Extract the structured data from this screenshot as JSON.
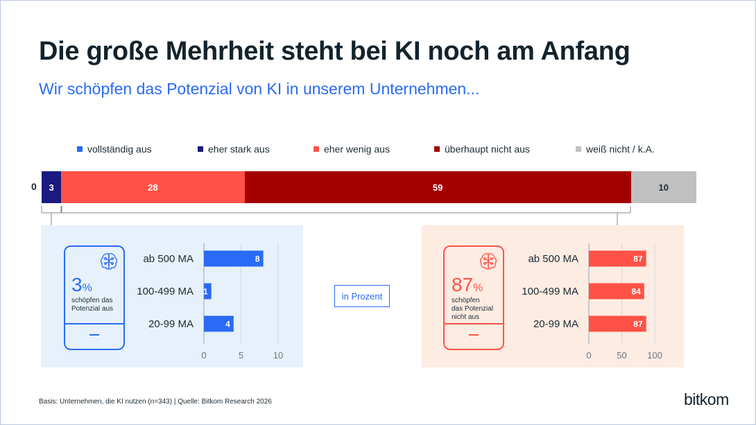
{
  "title": "Die große Mehrheit steht bei KI noch am Anfang",
  "subtitle": "Wir schöpfen das Potenzial von KI in unserem Unternehmen...",
  "colors": {
    "vollstaendig": "#2a6bf5",
    "eher_stark": "#1a1a80",
    "eher_wenig": "#ff5147",
    "ueberhaupt_nicht": "#a30000",
    "weiss_nicht": "#c0c0c0",
    "left_panel_bg": "#e6f1fb",
    "right_panel_bg": "#fdece2",
    "accent_blue": "#2a6bf5",
    "accent_red": "#ff5147"
  },
  "left_callout": {
    "value": "3",
    "unit": "%",
    "caption_line1": "schöpfen das",
    "caption_line2": "Potenzial aus",
    "icon": "brain-icon"
  },
  "right_callout": {
    "value": "87",
    "unit": "%",
    "caption_line1": "schöpfen",
    "caption_line2": "das Potenzial",
    "caption_line3": "nicht aus",
    "icon": "brain-icon"
  },
  "in_prozent_label": "in Prozent",
  "footer": "Basis: Unternehmen, die KI nutzen (n=343) | Quelle: Bitkom Research 2026",
  "logo": "bitkom",
  "chart_data": [
    {
      "type": "bar",
      "orientation": "horizontal-stacked",
      "legend_position": "top",
      "series": [
        {
          "name": "vollständig aus",
          "values": [
            0
          ]
        },
        {
          "name": "eher stark aus",
          "values": [
            3
          ]
        },
        {
          "name": "eher wenig aus",
          "values": [
            28
          ]
        },
        {
          "name": "überhaupt nicht aus",
          "values": [
            59
          ]
        },
        {
          "name": "weiß nicht / k.A.",
          "values": [
            10
          ]
        }
      ],
      "data_labels": [
        "0",
        "3",
        "28",
        "59",
        "10"
      ]
    },
    {
      "type": "bar",
      "orientation": "horizontal",
      "categories": [
        "ab 500 MA",
        "100-499 MA",
        "20-99 MA"
      ],
      "values": [
        8,
        1,
        4
      ],
      "xlim": [
        0,
        10
      ],
      "xticks": [
        "0",
        "5",
        "10"
      ]
    },
    {
      "type": "bar",
      "orientation": "horizontal",
      "categories": [
        "ab 500 MA",
        "100-499 MA",
        "20-99 MA"
      ],
      "values": [
        87,
        84,
        87
      ],
      "xlim": [
        0,
        100
      ],
      "xticks": [
        "0",
        "50",
        "100"
      ]
    }
  ]
}
